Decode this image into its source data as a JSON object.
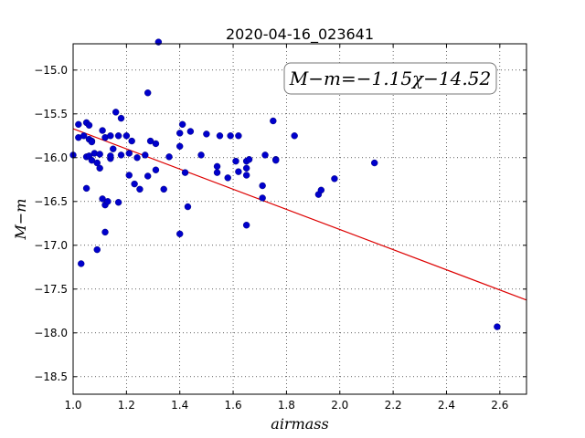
{
  "chart_data": {
    "type": "scatter",
    "title": "2020-04-16_023641",
    "xlabel": "airmass",
    "ylabel": "M−m",
    "xlim": [
      1.0,
      2.7
    ],
    "ylim": [
      -18.7,
      -14.7
    ],
    "xticks": [
      1.0,
      1.2,
      1.4,
      1.6,
      1.8,
      2.0,
      2.2,
      2.4,
      2.6
    ],
    "xtick_labels": [
      "1.0",
      "1.2",
      "1.4",
      "1.6",
      "1.8",
      "2.0",
      "2.2",
      "2.4",
      "2.6"
    ],
    "yticks": [
      -15.0,
      -15.5,
      -16.0,
      -16.5,
      -17.0,
      -17.5,
      -18.0,
      -18.5
    ],
    "ytick_labels": [
      "−15.0",
      "−15.5",
      "−16.0",
      "−16.5",
      "−17.0",
      "−17.5",
      "−18.0",
      "−18.5"
    ],
    "grid": true,
    "annotation": "M−m=−1.15χ−14.52",
    "fit": {
      "slope": -1.15,
      "intercept": -14.52,
      "color": "#dd0000"
    },
    "point_color": "#0000cc",
    "points": [
      [
        1.0,
        -15.97
      ],
      [
        1.02,
        -15.62
      ],
      [
        1.02,
        -15.77
      ],
      [
        1.03,
        -17.21
      ],
      [
        1.04,
        -15.75
      ],
      [
        1.05,
        -15.99
      ],
      [
        1.05,
        -15.6
      ],
      [
        1.05,
        -16.35
      ],
      [
        1.06,
        -15.79
      ],
      [
        1.06,
        -15.98
      ],
      [
        1.06,
        -15.63
      ],
      [
        1.07,
        -15.81
      ],
      [
        1.07,
        -15.82
      ],
      [
        1.07,
        -16.03
      ],
      [
        1.08,
        -15.95
      ],
      [
        1.09,
        -17.05
      ],
      [
        1.09,
        -16.06
      ],
      [
        1.1,
        -16.12
      ],
      [
        1.1,
        -15.96
      ],
      [
        1.11,
        -16.47
      ],
      [
        1.11,
        -15.69
      ],
      [
        1.12,
        -16.54
      ],
      [
        1.12,
        -15.77
      ],
      [
        1.12,
        -16.85
      ],
      [
        1.13,
        -16.5
      ],
      [
        1.14,
        -16.01
      ],
      [
        1.14,
        -15.98
      ],
      [
        1.14,
        -15.75
      ],
      [
        1.15,
        -15.9
      ],
      [
        1.16,
        -15.48
      ],
      [
        1.17,
        -16.51
      ],
      [
        1.17,
        -15.75
      ],
      [
        1.18,
        -15.97
      ],
      [
        1.18,
        -15.55
      ],
      [
        1.2,
        -15.75
      ],
      [
        1.21,
        -16.2
      ],
      [
        1.21,
        -15.95
      ],
      [
        1.22,
        -15.81
      ],
      [
        1.23,
        -16.3
      ],
      [
        1.24,
        -16.0
      ],
      [
        1.25,
        -16.36
      ],
      [
        1.27,
        -15.97
      ],
      [
        1.28,
        -15.26
      ],
      [
        1.28,
        -16.21
      ],
      [
        1.29,
        -15.81
      ],
      [
        1.31,
        -15.84
      ],
      [
        1.31,
        -16.14
      ],
      [
        1.32,
        -14.68
      ],
      [
        1.34,
        -16.36
      ],
      [
        1.36,
        -15.99
      ],
      [
        1.4,
        -15.87
      ],
      [
        1.4,
        -16.87
      ],
      [
        1.4,
        -15.72
      ],
      [
        1.41,
        -15.62
      ],
      [
        1.42,
        -16.17
      ],
      [
        1.43,
        -16.56
      ],
      [
        1.44,
        -15.7
      ],
      [
        1.48,
        -15.97
      ],
      [
        1.5,
        -15.73
      ],
      [
        1.54,
        -16.17
      ],
      [
        1.54,
        -16.1
      ],
      [
        1.55,
        -15.75
      ],
      [
        1.58,
        -16.23
      ],
      [
        1.59,
        -15.75
      ],
      [
        1.61,
        -16.04
      ],
      [
        1.62,
        -16.16
      ],
      [
        1.62,
        -15.75
      ],
      [
        1.65,
        -16.12
      ],
      [
        1.65,
        -16.77
      ],
      [
        1.65,
        -16.04
      ],
      [
        1.65,
        -16.2
      ],
      [
        1.66,
        -16.02
      ],
      [
        1.71,
        -16.32
      ],
      [
        1.71,
        -16.46
      ],
      [
        1.72,
        -15.97
      ],
      [
        1.75,
        -15.58
      ],
      [
        1.76,
        -16.02
      ],
      [
        1.76,
        -16.03
      ],
      [
        1.83,
        -15.75
      ],
      [
        1.92,
        -16.42
      ],
      [
        1.93,
        -16.37
      ],
      [
        1.98,
        -16.24
      ],
      [
        2.13,
        -16.06
      ],
      [
        2.59,
        -17.93
      ]
    ]
  }
}
